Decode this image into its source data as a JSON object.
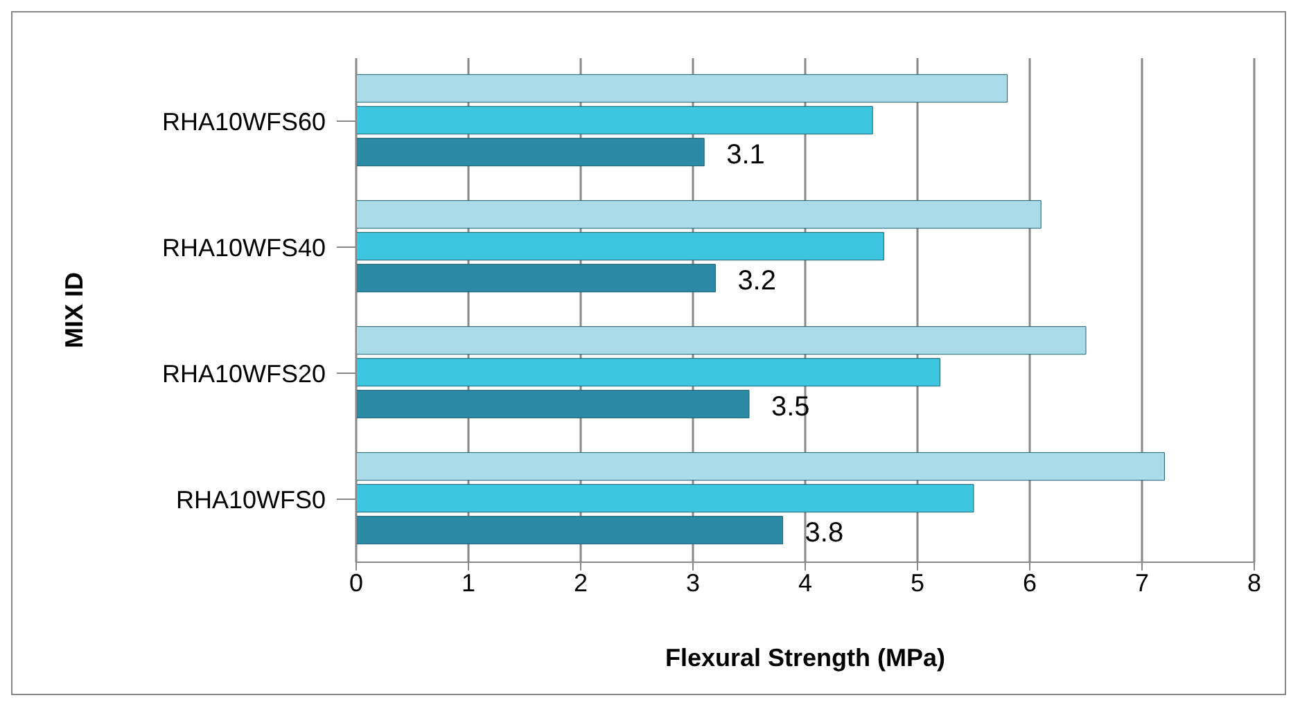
{
  "chart_data": {
    "type": "bar",
    "orientation": "horizontal",
    "xlabel": "Flexural Strength (MPa)",
    "ylabel": "MIX ID",
    "categories": [
      "RHA10WFS60",
      "RHA10WFS40",
      "RHA10WFS20",
      "RHA10WFS0"
    ],
    "series": [
      {
        "color": "#a9dbe9",
        "values": [
          5.8,
          6.1,
          6.5,
          7.2
        ]
      },
      {
        "color": "#3cc6e0",
        "values": [
          4.6,
          4.7,
          5.2,
          5.5
        ]
      },
      {
        "color": "#2b8aa6",
        "values": [
          3.1,
          3.2,
          3.5,
          3.8
        ],
        "value_labels": [
          "3.1",
          "3.2",
          "3.5",
          "3.8"
        ]
      }
    ],
    "xlim": [
      0,
      8
    ],
    "xticks": [
      0,
      1,
      2,
      3,
      4,
      5,
      6,
      7,
      8
    ],
    "grid": "x"
  }
}
